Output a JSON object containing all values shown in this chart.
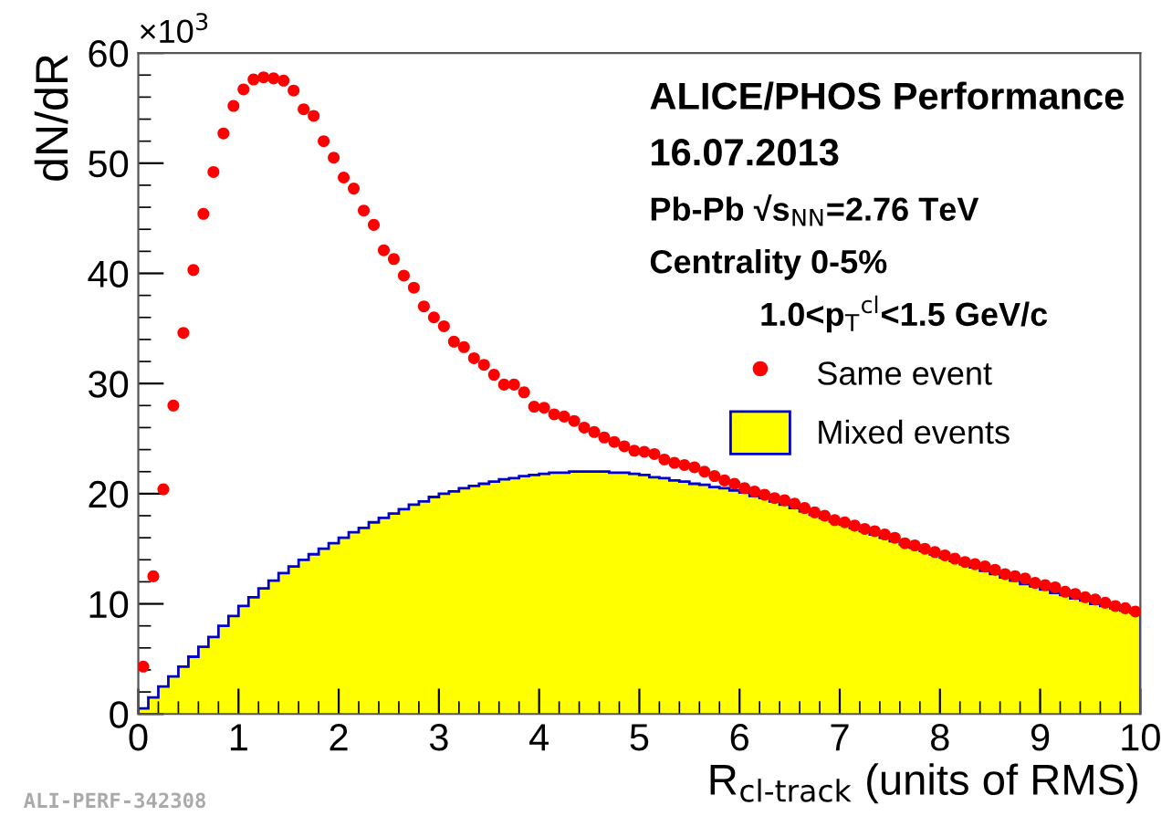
{
  "chart_data": {
    "type": "scatter",
    "xlabel": "R$_{cl-track}$ (units of RMS)",
    "ylabel": "dN/dR",
    "annotations": [
      "×10$^{3}$",
      "ALICE/PHOS Performance",
      "16.07.2013",
      "Pb-Pb √s$_{NN}$=2.76 TeV",
      "Centrality 0-5%",
      "1.0<p$_{T}$$^{cl}$<1.5 GeV/c",
      "ALI-PERF-342308"
    ],
    "xlim": [
      0,
      10
    ],
    "xticks": [
      0,
      1,
      2,
      3,
      4,
      5,
      6,
      7,
      8,
      9,
      10
    ],
    "ylim": [
      0,
      60
    ],
    "yticks": [
      0,
      10,
      20,
      30,
      40,
      50,
      60
    ],
    "grid": false,
    "legend": "right",
    "marker": "circle",
    "series": [
      {
        "name": "Mixed events",
        "type": "histogram",
        "color": "#ffff00",
        "bins": [
          0,
          0.1,
          0.2,
          0.3,
          0.4,
          0.5,
          0.6,
          0.7,
          0.8,
          0.9,
          1,
          1.1,
          1.2,
          1.3,
          1.4,
          1.5,
          1.6,
          1.7,
          1.8,
          1.9,
          2,
          2.1,
          2.2,
          2.3,
          2.4,
          2.5,
          2.6,
          2.7,
          2.8,
          2.9,
          3,
          3.1,
          3.2,
          3.3,
          3.4,
          3.5,
          3.6,
          3.7,
          3.8,
          3.9,
          4,
          4.1,
          4.2,
          4.3,
          4.4,
          4.5,
          4.6,
          4.7,
          4.8,
          4.9,
          5,
          5.1,
          5.2,
          5.3,
          5.4,
          5.5,
          5.6,
          5.7,
          5.8,
          5.9,
          6,
          6.1,
          6.2,
          6.3,
          6.4,
          6.5,
          6.6,
          6.7,
          6.8,
          6.9,
          7,
          7.1,
          7.2,
          7.3,
          7.4,
          7.5,
          7.6,
          7.7,
          7.8,
          7.9,
          8,
          8.1,
          8.2,
          8.3,
          8.4,
          8.5,
          8.6,
          8.7,
          8.8,
          8.9,
          9,
          9.1,
          9.2,
          9.3,
          9.4,
          9.5,
          9.6,
          9.7,
          9.8,
          9.9,
          10
        ],
        "values": [
          0.5,
          1.5,
          2.5,
          3.4,
          4.3,
          5.2,
          6.1,
          7.0,
          8.0,
          8.9,
          9.8,
          10.6,
          11.4,
          12.1,
          12.8,
          13.4,
          14.0,
          14.5,
          15.0,
          15.5,
          16.0,
          16.5,
          16.9,
          17.4,
          17.8,
          18.2,
          18.6,
          19.0,
          19.3,
          19.7,
          20.0,
          20.2,
          20.5,
          20.7,
          20.9,
          21.1,
          21.3,
          21.4,
          21.6,
          21.7,
          21.8,
          21.9,
          21.9,
          22.0,
          22.0,
          22.0,
          22.0,
          21.9,
          21.9,
          21.8,
          21.7,
          21.5,
          21.4,
          21.2,
          21.1,
          20.9,
          20.8,
          20.6,
          20.5,
          20.3,
          20.1,
          19.8,
          19.6,
          19.3,
          19.0,
          18.7,
          18.4,
          18.1,
          17.8,
          17.5,
          17.2,
          16.9,
          16.6,
          16.3,
          16.0,
          15.7,
          15.4,
          15.1,
          14.8,
          14.5,
          14.2,
          13.9,
          13.6,
          13.3,
          13.0,
          12.7,
          12.4,
          12.1,
          11.8,
          11.6,
          11.3,
          11.0,
          10.8,
          10.5,
          10.3,
          10.0,
          9.8,
          9.6,
          9.4,
          9.2
        ]
      },
      {
        "name": "Same event",
        "color": "#ff0000",
        "x": [
          0.05,
          0.15,
          0.25,
          0.35,
          0.45,
          0.55,
          0.65,
          0.75,
          0.85,
          0.95,
          1.05,
          1.15,
          1.25,
          1.35,
          1.45,
          1.55,
          1.65,
          1.75,
          1.85,
          1.95,
          2.05,
          2.15,
          2.25,
          2.35,
          2.45,
          2.55,
          2.65,
          2.75,
          2.85,
          2.95,
          3.05,
          3.15,
          3.25,
          3.35,
          3.45,
          3.55,
          3.65,
          3.75,
          3.85,
          3.95,
          4.05,
          4.15,
          4.25,
          4.35,
          4.45,
          4.55,
          4.65,
          4.75,
          4.85,
          4.95,
          5.05,
          5.15,
          5.25,
          5.35,
          5.45,
          5.55,
          5.65,
          5.75,
          5.85,
          5.95,
          6.05,
          6.15,
          6.25,
          6.35,
          6.45,
          6.55,
          6.65,
          6.75,
          6.85,
          6.95,
          7.05,
          7.15,
          7.25,
          7.35,
          7.45,
          7.55,
          7.65,
          7.75,
          7.85,
          7.95,
          8.05,
          8.15,
          8.25,
          8.35,
          8.45,
          8.55,
          8.65,
          8.75,
          8.85,
          8.95,
          9.05,
          9.15,
          9.25,
          9.35,
          9.45,
          9.55,
          9.65,
          9.75,
          9.85,
          9.95
        ],
        "values": [
          4.3,
          12.5,
          20.4,
          28,
          34.6,
          40.3,
          45.4,
          49.2,
          52.7,
          55.2,
          56.7,
          57.6,
          57.8,
          57.7,
          57.5,
          56.6,
          54.9,
          54.3,
          52,
          50.5,
          48.7,
          47.7,
          45.7,
          44.4,
          42.1,
          41.3,
          39.8,
          38.7,
          37,
          36,
          35.2,
          33.8,
          33.3,
          32.3,
          31.7,
          30.8,
          29.9,
          29.9,
          29.2,
          27.9,
          27.8,
          27.2,
          27,
          26.6,
          26,
          25.6,
          25.1,
          24.7,
          24.3,
          23.9,
          23.8,
          23.6,
          23.1,
          22.8,
          22.6,
          22.4,
          22.0,
          21.6,
          21.2,
          20.9,
          20.5,
          20.2,
          19.9,
          19.6,
          19.4,
          19.1,
          18.7,
          18.3,
          18.0,
          17.6,
          17.4,
          17.1,
          16.8,
          16.6,
          16.3,
          16.0,
          15.5,
          15.3,
          15.0,
          14.7,
          14.4,
          14.1,
          13.8,
          13.6,
          13.4,
          13.1,
          12.7,
          12.5,
          12.3,
          11.9,
          11.7,
          11.5,
          11.1,
          10.9,
          10.6,
          10.4,
          10.1,
          9.8,
          9.6,
          9.3
        ]
      }
    ]
  }
}
